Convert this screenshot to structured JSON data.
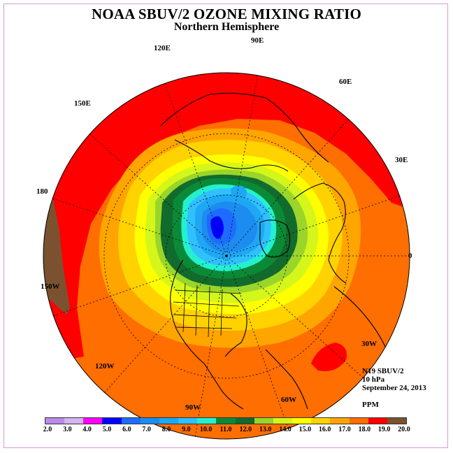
{
  "title": "NOAA SBUV/2 OZONE MIXING RATIO",
  "subtitle": "Northern Hemisphere",
  "longitude_labels": {
    "e90": "90E",
    "e60": "60E",
    "e30": "30E",
    "zero": "0",
    "w30": "30W",
    "w60": "60W",
    "w90": "90W",
    "w120": "120W",
    "w150": "150W",
    "d180": "180",
    "e150": "150E",
    "e120": "120E"
  },
  "info": {
    "instrument": "N19 SBUV/2",
    "level": "10 hPa",
    "date": "September 24, 2013",
    "units": "PPM"
  },
  "colorbar": {
    "labels": [
      "2.0",
      "3.0",
      "4.0",
      "5.0",
      "6.0",
      "7.0",
      "8.0",
      "9.0",
      "10.0",
      "11.0",
      "12.0",
      "13.0",
      "14.0",
      "15.0",
      "16.0",
      "17.0",
      "18.0",
      "19.0",
      "20.0"
    ],
    "colors": [
      "#b98ae9",
      "#d7b3f0",
      "#ff00ff",
      "#0000ff",
      "#1e6cff",
      "#1c8cf0",
      "#1ea8f4",
      "#30c0ff",
      "#24f0d0",
      "#0a8a36",
      "#116b2c",
      "#9bd52a",
      "#d4f61a",
      "#ffff00",
      "#ffd200",
      "#ffa500",
      "#ff6e00",
      "#ff0000",
      "#7a5230"
    ]
  }
}
